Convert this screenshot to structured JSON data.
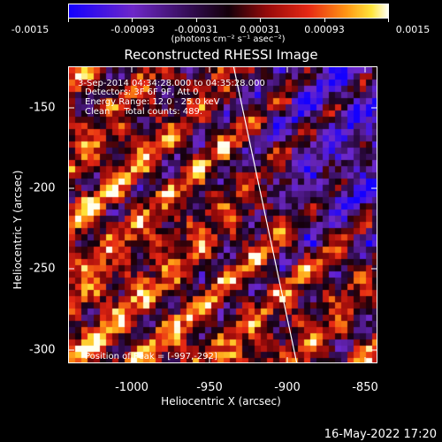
{
  "colorbar": {
    "tick_labels": [
      "-0.0015",
      "-0.00093",
      "-0.00031",
      "0.00031",
      "0.00093",
      "0.0015"
    ],
    "units_label": "(photons cm⁻² s⁻¹ asec⁻²)",
    "range": [
      -0.0015,
      0.0015
    ]
  },
  "title": "Reconstructed RHESSI Image",
  "annotations": {
    "time": "3-Sep-2014 04:34:28.000 to 04:35:28.000",
    "detectors": "Detectors: 3F 6F 9F, Att 0",
    "energy": "Energy Range: 12.0 - 25.0 keV",
    "clean": "Clean     Total counts: 489.",
    "peak": "Position of Peak = [-997,-292]"
  },
  "axes": {
    "xlabel": "Heliocentric X (arcsec)",
    "ylabel": "Heliocentric Y (arcsec)",
    "xticks": [
      "-1000",
      "-950",
      "-900",
      "-850"
    ],
    "yticks": [
      "-150",
      "-200",
      "-250",
      "-300"
    ],
    "xlim": [
      -1043,
      -850
    ],
    "ylim": [
      -318,
      -132
    ]
  },
  "footer": {
    "datestamp": "16-May-2022 17:20"
  },
  "colors": {
    "background": "#000000",
    "limb_line": "#ffffff"
  }
}
